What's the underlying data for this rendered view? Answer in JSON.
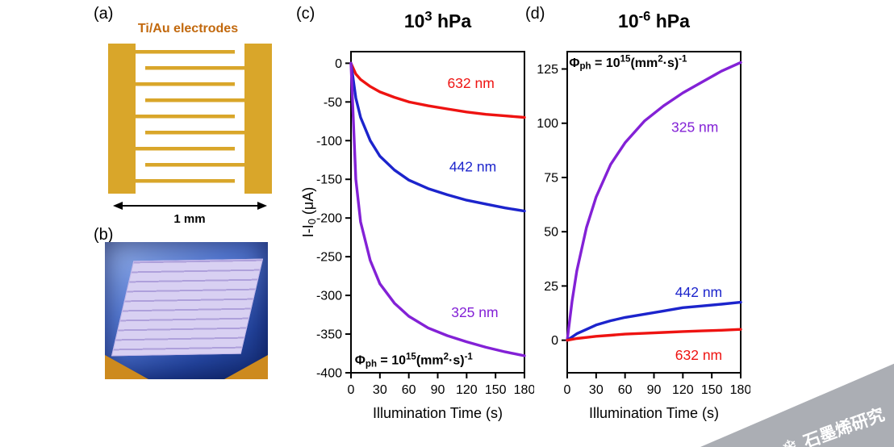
{
  "figure": {
    "panel_labels": {
      "a": "(a)",
      "b": "(b)",
      "c": "(c)",
      "d": "(d)"
    },
    "panel_a": {
      "title": "Ti/Au electrodes",
      "scale_label": "1 mm",
      "electrode_color": "#d9a62a",
      "title_color": "#c2690e"
    },
    "watermark": {
      "text": "石墨烯研究",
      "icon": "snowflake",
      "band_color": "#abaeb4",
      "text_color": "#ffffff"
    }
  },
  "chart_data": [
    {
      "id": "chart-c",
      "type": "line",
      "title": "10^{3} hPa",
      "xlabel": "Illumination Time (s)",
      "ylabel": "I-I_{0} (μA)",
      "xlim": [
        0,
        180
      ],
      "ylim": [
        -400,
        15
      ],
      "xticks": [
        0,
        30,
        60,
        90,
        120,
        150,
        180
      ],
      "yticks": [
        0,
        -50,
        -100,
        -150,
        -200,
        -250,
        -300,
        -350,
        -400
      ],
      "annotation": {
        "text": "Φ_{ph} = 10^{15}(mm^{2}·s)^{-1}",
        "x": 4,
        "y": -389
      },
      "series": [
        {
          "name": "632 nm",
          "color": "#ee1311",
          "x": [
            0,
            5,
            10,
            20,
            30,
            45,
            60,
            80,
            100,
            120,
            140,
            160,
            180
          ],
          "y": [
            0,
            -14,
            -21,
            -30,
            -37,
            -44,
            -50,
            -55,
            -59,
            -63,
            -66,
            -68,
            -70
          ],
          "label": {
            "x": 100,
            "y": -32
          }
        },
        {
          "name": "442 nm",
          "color": "#1c24cc",
          "x": [
            0,
            5,
            10,
            20,
            30,
            45,
            60,
            80,
            100,
            120,
            140,
            160,
            180
          ],
          "y": [
            0,
            -45,
            -70,
            -100,
            -120,
            -138,
            -151,
            -162,
            -170,
            -177,
            -182,
            -187,
            -191
          ],
          "label": {
            "x": 102,
            "y": -140
          }
        },
        {
          "name": "325 nm",
          "color": "#8321d6",
          "x": [
            0,
            5,
            10,
            20,
            30,
            45,
            60,
            80,
            100,
            120,
            140,
            160,
            180
          ],
          "y": [
            0,
            -150,
            -205,
            -255,
            -285,
            -310,
            -327,
            -342,
            -352,
            -360,
            -367,
            -373,
            -378
          ],
          "label": {
            "x": 104,
            "y": -328
          }
        }
      ]
    },
    {
      "id": "chart-d",
      "type": "line",
      "title": "10^{-6} hPa",
      "xlabel": "Illumination Time (s)",
      "ylabel": "",
      "xlim": [
        0,
        180
      ],
      "ylim": [
        -15,
        133
      ],
      "xticks": [
        0,
        30,
        60,
        90,
        120,
        150,
        180
      ],
      "yticks": [
        0,
        25,
        50,
        75,
        100,
        125
      ],
      "annotation": {
        "text": "Φ_{ph} = 10^{15}(mm^{2}·s)^{-1}",
        "x": 2,
        "y": 126
      },
      "series": [
        {
          "name": "325 nm",
          "color": "#8321d6",
          "x": [
            0,
            5,
            10,
            20,
            30,
            45,
            60,
            80,
            100,
            120,
            140,
            160,
            180
          ],
          "y": [
            0,
            18,
            32,
            52,
            66,
            81,
            91,
            101,
            108,
            114,
            119,
            124,
            128
          ],
          "label": {
            "x": 108,
            "y": 96
          }
        },
        {
          "name": "442 nm",
          "color": "#1c24cc",
          "x": [
            0,
            5,
            10,
            20,
            30,
            45,
            60,
            80,
            100,
            120,
            140,
            160,
            180
          ],
          "y": [
            0,
            1.5,
            3,
            5,
            7,
            9,
            10.5,
            12,
            13.5,
            15,
            15.8,
            16.6,
            17.5
          ],
          "label": {
            "x": 112,
            "y": 20
          }
        },
        {
          "name": "632 nm",
          "color": "#ee1311",
          "x": [
            0,
            5,
            10,
            20,
            30,
            45,
            60,
            80,
            100,
            120,
            140,
            160,
            180
          ],
          "y": [
            0,
            0.4,
            0.8,
            1.3,
            1.8,
            2.3,
            2.8,
            3.2,
            3.6,
            4.0,
            4.3,
            4.6,
            5.0
          ],
          "label": {
            "x": 112,
            "y": -9
          }
        }
      ]
    }
  ]
}
